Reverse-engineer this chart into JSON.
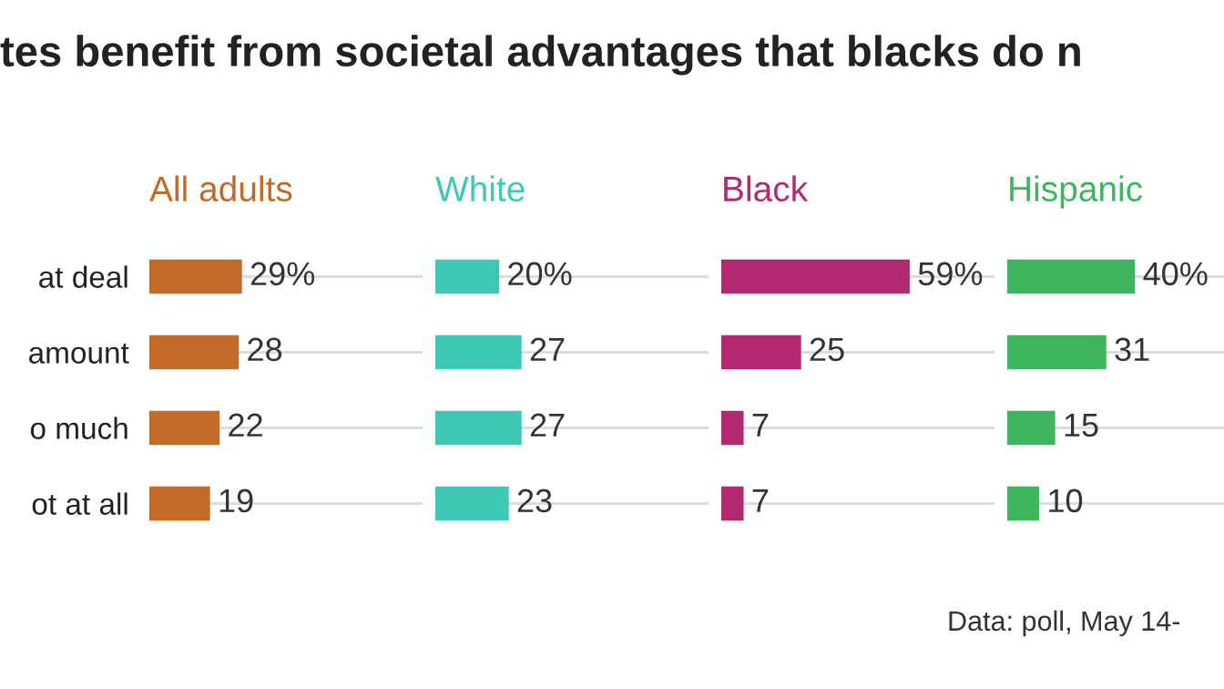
{
  "chart_data": [
    {
      "type": "bar",
      "orientation": "horizontal",
      "title": "tes benefit from societal advantages that blacks do n",
      "annotations": [
        "Data: poll, May 14-"
      ],
      "categories": [
        "at deal",
        "amount",
        "o much",
        "ot at all"
      ],
      "tick_labels": "y",
      "grid": "y",
      "series": [
        {
          "name": "All adults",
          "color": "#c26a28",
          "values": [
            29,
            28,
            22,
            19
          ],
          "value_labels": [
            "29%",
            "28",
            "22",
            "19"
          ]
        }
      ]
    },
    {
      "type": "bar",
      "orientation": "horizontal",
      "categories": [
        null,
        null,
        null,
        null
      ],
      "grid": "y",
      "series": [
        {
          "name": "White",
          "color": "#3ec9b6",
          "values": [
            20,
            27,
            27,
            23
          ],
          "value_labels": [
            "20%",
            "27",
            "27",
            "23"
          ]
        }
      ]
    },
    {
      "type": "bar",
      "orientation": "horizontal",
      "categories": [
        null,
        null,
        null,
        null
      ],
      "grid": "y",
      "series": [
        {
          "name": "Black",
          "color": "#b3286f",
          "values": [
            59,
            25,
            7,
            7
          ],
          "value_labels": [
            "59%",
            "25",
            "7",
            "7"
          ]
        }
      ]
    },
    {
      "type": "bar",
      "orientation": "horizontal",
      "categories": [
        null,
        null,
        null,
        null
      ],
      "grid": "y",
      "series": [
        {
          "name": "Hispanic",
          "color": "#3db55c",
          "values": [
            40,
            31,
            15,
            10
          ],
          "value_labels": [
            "40%",
            "31",
            "15",
            "10"
          ]
        }
      ]
    }
  ]
}
